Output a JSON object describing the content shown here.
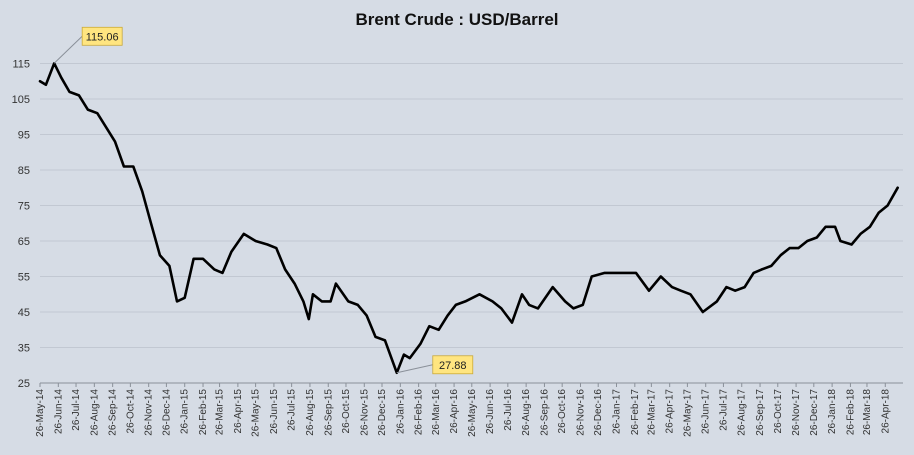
{
  "chart_data": {
    "type": "line",
    "title": "Brent Crude : USD/Barrel",
    "xlabel": "",
    "ylabel": "",
    "ylim": [
      25,
      125
    ],
    "yticks": [
      25,
      35,
      45,
      55,
      65,
      75,
      85,
      95,
      105,
      115
    ],
    "grid": true,
    "x_ticks": [
      "26-May-14",
      "26-Jun-14",
      "26-Jul-14",
      "26-Aug-14",
      "26-Sep-14",
      "26-Oct-14",
      "26-Nov-14",
      "26-Dec-14",
      "26-Jan-15",
      "26-Feb-15",
      "26-Mar-15",
      "26-Apr-15",
      "26-May-15",
      "26-Jun-15",
      "26-Jul-15",
      "26-Aug-15",
      "26-Sep-15",
      "26-Oct-15",
      "26-Nov-15",
      "26-Dec-15",
      "26-Jan-16",
      "26-Feb-16",
      "26-Mar-16",
      "26-Apr-16",
      "26-May-16",
      "26-Jun-16",
      "26-Jul-16",
      "26-Aug-16",
      "26-Sep-16",
      "26-Oct-16",
      "26-Nov-16",
      "26-Dec-16",
      "26-Jan-17",
      "26-Feb-17",
      "26-Mar-17",
      "26-Apr-17",
      "26-May-17",
      "26-Jun-17",
      "26-Jul-17",
      "26-Aug-17",
      "26-Sep-17",
      "26-Oct-17",
      "26-Nov-17",
      "26-Dec-17",
      "26-Jan-18",
      "26-Feb-18",
      "26-Mar-18",
      "26-Apr-18"
    ],
    "series": [
      {
        "name": "",
        "color": "#000000",
        "x": [
          "2014-05-26",
          "2014-06-05",
          "2014-06-19",
          "2014-07-01",
          "2014-07-15",
          "2014-07-31",
          "2014-08-15",
          "2014-08-31",
          "2014-09-15",
          "2014-09-30",
          "2014-10-15",
          "2014-10-31",
          "2014-11-15",
          "2014-11-30",
          "2014-12-15",
          "2014-12-31",
          "2015-01-13",
          "2015-01-26",
          "2015-02-10",
          "2015-02-26",
          "2015-03-17",
          "2015-03-31",
          "2015-04-15",
          "2015-05-06",
          "2015-05-26",
          "2015-06-15",
          "2015-06-30",
          "2015-07-15",
          "2015-07-31",
          "2015-08-15",
          "2015-08-24",
          "2015-08-31",
          "2015-09-15",
          "2015-09-30",
          "2015-10-09",
          "2015-10-30",
          "2015-11-15",
          "2015-11-30",
          "2015-12-15",
          "2015-12-31",
          "2016-01-20",
          "2016-02-01",
          "2016-02-11",
          "2016-02-29",
          "2016-03-15",
          "2016-03-31",
          "2016-04-15",
          "2016-04-29",
          "2016-05-15",
          "2016-06-08",
          "2016-06-30",
          "2016-07-15",
          "2016-08-02",
          "2016-08-19",
          "2016-08-31",
          "2016-09-15",
          "2016-10-10",
          "2016-10-31",
          "2016-11-14",
          "2016-11-30",
          "2016-12-15",
          "2017-01-06",
          "2017-01-31",
          "2017-02-15",
          "2017-02-28",
          "2017-03-22",
          "2017-04-11",
          "2017-04-30",
          "2017-05-15",
          "2017-05-31",
          "2017-06-21",
          "2017-07-15",
          "2017-07-31",
          "2017-08-15",
          "2017-08-31",
          "2017-09-15",
          "2017-09-29",
          "2017-10-15",
          "2017-10-31",
          "2017-11-15",
          "2017-11-30",
          "2017-12-15",
          "2017-12-31",
          "2018-01-15",
          "2018-01-31",
          "2018-02-09",
          "2018-02-28",
          "2018-03-15",
          "2018-03-31",
          "2018-04-15",
          "2018-04-30",
          "2018-05-17"
        ],
        "y": [
          110,
          109,
          115.06,
          111,
          107,
          106,
          102,
          101,
          97,
          93,
          86,
          86,
          79,
          70,
          61,
          58,
          48,
          49,
          60,
          60,
          57,
          56,
          62,
          67,
          65,
          64,
          63,
          57,
          53,
          48,
          43,
          50,
          48,
          48,
          53,
          48,
          47,
          44,
          38,
          37,
          27.88,
          33,
          32,
          36,
          41,
          40,
          44,
          47,
          48,
          50,
          48,
          46,
          42,
          50,
          47,
          46,
          52,
          48,
          46,
          47,
          55,
          56,
          56,
          56,
          56,
          51,
          55,
          52,
          51,
          50,
          45,
          48,
          52,
          51,
          52,
          56,
          57,
          58,
          61,
          63,
          63,
          65,
          66,
          69,
          69,
          65,
          64,
          67,
          69,
          73,
          75,
          80
        ]
      }
    ],
    "annotations": [
      {
        "label": "115.06",
        "x": "2014-06-19",
        "y": 115.06
      },
      {
        "label": "27.88",
        "x": "2016-01-20",
        "y": 27.88
      }
    ]
  }
}
